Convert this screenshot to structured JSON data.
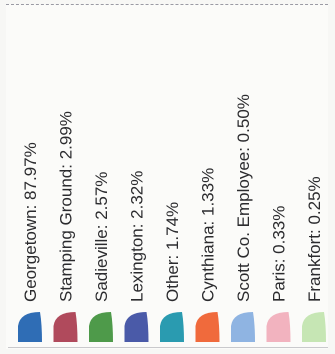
{
  "chart_data": {
    "type": "pie",
    "legend_placement": "bottom",
    "categories": [
      "Georgetown",
      "Stamping Ground",
      "Sadieville",
      "Lexington",
      "Other",
      "Cynthiana",
      "Scott Co. Employee",
      "Paris",
      "Frankfort"
    ],
    "values": [
      87.97,
      2.99,
      2.57,
      2.32,
      1.74,
      1.33,
      0.5,
      0.33,
      0.25
    ],
    "unit": "%",
    "entries": [
      {
        "label": "Georgetown: 87.97%",
        "color": "#2f6db5"
      },
      {
        "label": "Stamping Ground: 2.99%",
        "color": "#b04a5c"
      },
      {
        "label": "Sadieville: 2.57%",
        "color": "#4e9a4a"
      },
      {
        "label": "Lexington: 2.32%",
        "color": "#4a5aa8"
      },
      {
        "label": "Other: 1.74%",
        "color": "#2a9bb0"
      },
      {
        "label": "Cynthiana: 1.33%",
        "color": "#f06a3c"
      },
      {
        "label": "Scott Co. Employee: 0.50%",
        "color": "#8fb4e2"
      },
      {
        "label": "Paris: 0.33%",
        "color": "#f2b3bf"
      },
      {
        "label": "Frankfort: 0.25%",
        "color": "#c6e6b4"
      }
    ]
  }
}
